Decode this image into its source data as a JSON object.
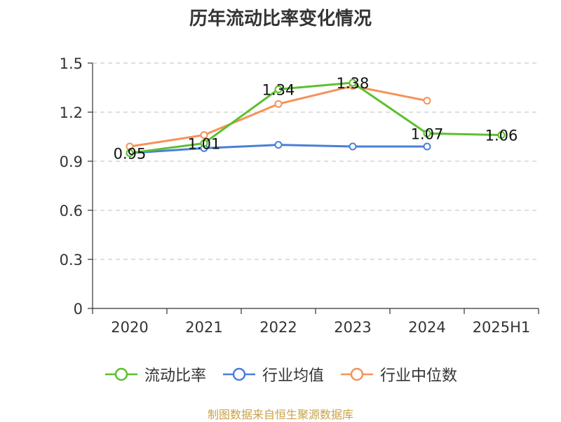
{
  "chart_data": {
    "type": "line",
    "title": "历年流动比率变化情况",
    "categories": [
      "2020",
      "2021",
      "2022",
      "2023",
      "2024",
      "2025H1"
    ],
    "ylim": [
      0,
      1.5
    ],
    "yticks": [
      "0",
      "0.3",
      "0.6",
      "0.9",
      "1.2",
      "1.5"
    ],
    "grid": true,
    "legend_position": "bottom",
    "series": [
      {
        "name": "流动比率",
        "color": "#5cc02f",
        "values": [
          0.95,
          1.01,
          1.34,
          1.38,
          1.07,
          1.06
        ],
        "labels": [
          "0.95",
          "1.01",
          "1.34",
          "1.38",
          "1.07",
          "1.06"
        ]
      },
      {
        "name": "行业均值",
        "color": "#4a7fd9",
        "values": [
          0.95,
          0.98,
          1.0,
          0.99,
          0.99,
          null
        ]
      },
      {
        "name": "行业中位数",
        "color": "#f59259",
        "values": [
          0.99,
          1.06,
          1.25,
          1.36,
          1.27,
          null
        ]
      }
    ]
  },
  "source": "制图数据来自恒生聚源数据库"
}
